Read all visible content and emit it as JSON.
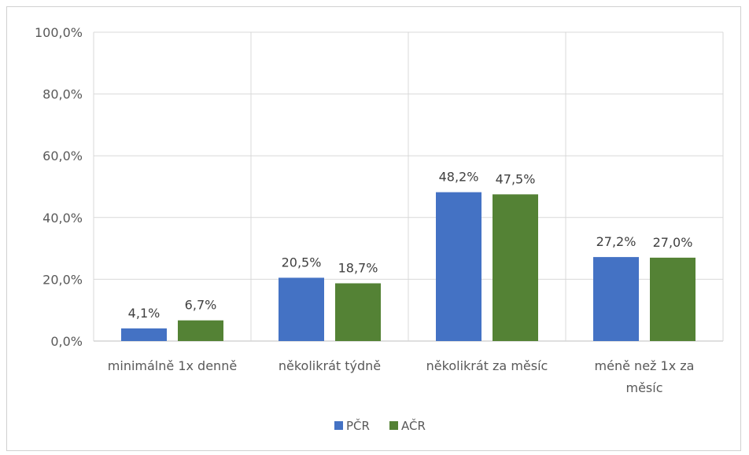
{
  "chart_data": {
    "type": "bar",
    "categories": [
      [
        "minimálně 1x denně"
      ],
      [
        "několikrát týdně"
      ],
      [
        "několikrát za měsíc"
      ],
      [
        "méně než 1x za",
        "měsíc"
      ]
    ],
    "series": [
      {
        "name": "PČR",
        "color": "#4472C4",
        "values": [
          4.1,
          20.5,
          48.2,
          27.2
        ],
        "labels": [
          "4,1%",
          "20,5%",
          "48,2%",
          "27,2%"
        ]
      },
      {
        "name": "AČR",
        "color": "#548235",
        "values": [
          6.7,
          18.7,
          47.5,
          27.0
        ],
        "labels": [
          "6,7%",
          "18,7%",
          "47,5%",
          "27,0%"
        ]
      }
    ],
    "ylim": [
      0,
      100
    ],
    "yticks": [
      {
        "value": 0,
        "label": "0,0%"
      },
      {
        "value": 20,
        "label": "20,0%"
      },
      {
        "value": 40,
        "label": "40,0%"
      },
      {
        "value": 60,
        "label": "60,0%"
      },
      {
        "value": 80,
        "label": "80,0%"
      },
      {
        "value": 100,
        "label": "100,0%"
      }
    ],
    "title": "",
    "xlabel": "",
    "ylabel": "",
    "grid": true,
    "legend_position": "bottom",
    "colors": {
      "gridline": "#d9d9d9",
      "axis": "#bfbfbf"
    }
  }
}
